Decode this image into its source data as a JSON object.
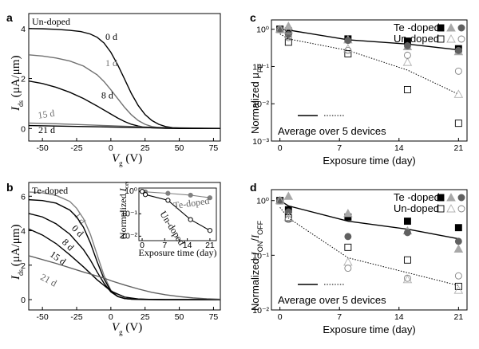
{
  "chart_data": [
    {
      "panel": "a",
      "type": "line",
      "title": "Un-doped",
      "xlabel_main": "V",
      "xlabel_sub": "g",
      "xlabel_unit": " (V)",
      "ylabel_main": "I",
      "ylabel_sub": "ds",
      "ylabel_unit": " (μA/μm)",
      "xlim": [
        -60,
        80
      ],
      "ylim": [
        -0.5,
        4.6
      ],
      "xticks": [
        -50,
        -25,
        0,
        25,
        50,
        75
      ],
      "yticks": [
        0,
        2,
        4
      ],
      "series": [
        {
          "name": "0 d",
          "color": "#000000",
          "label_x": -4,
          "label_y": 3.55,
          "x": [
            -60,
            -50,
            -40,
            -30,
            -22,
            -15,
            -10,
            -5,
            0,
            5,
            10,
            15,
            20,
            25,
            30,
            35,
            40,
            45,
            50,
            60,
            70,
            80
          ],
          "y": [
            4.0,
            3.99,
            3.97,
            3.93,
            3.88,
            3.78,
            3.65,
            3.42,
            3.05,
            2.55,
            1.98,
            1.4,
            0.92,
            0.56,
            0.32,
            0.17,
            0.08,
            0.04,
            0.02,
            0.01,
            0.0,
            0.0
          ]
        },
        {
          "name": "1 d",
          "color": "#707070",
          "label_x": -4,
          "label_y": 2.5,
          "x": [
            -60,
            -50,
            -40,
            -30,
            -20,
            -10,
            -5,
            0,
            5,
            10,
            15,
            20,
            25,
            30,
            35,
            40,
            50,
            60,
            80
          ],
          "y": [
            2.95,
            2.9,
            2.82,
            2.7,
            2.5,
            2.15,
            1.88,
            1.55,
            1.2,
            0.85,
            0.55,
            0.32,
            0.17,
            0.08,
            0.04,
            0.02,
            0.01,
            0.0,
            0.0
          ]
        },
        {
          "name": "8 d",
          "color": "#000000",
          "label_x": -7,
          "label_y": 1.2,
          "x": [
            -60,
            -50,
            -40,
            -30,
            -20,
            -10,
            0,
            5,
            10,
            15,
            20,
            25,
            30,
            35,
            40,
            50,
            60,
            80
          ],
          "y": [
            1.9,
            1.8,
            1.65,
            1.45,
            1.2,
            0.9,
            0.58,
            0.42,
            0.28,
            0.17,
            0.1,
            0.05,
            0.03,
            0.02,
            0.01,
            0.0,
            0.0,
            0.0
          ]
        },
        {
          "name": "15 d",
          "color": "#707070",
          "label_x": -53,
          "label_y": 0.4,
          "x": [
            -60,
            -40,
            -20,
            0,
            20,
            40,
            60,
            80
          ],
          "y": [
            0.22,
            0.19,
            0.15,
            0.11,
            0.07,
            0.04,
            0.02,
            0.01
          ]
        },
        {
          "name": "21 d",
          "color": "#000000",
          "label_x": -53,
          "label_y": -0.18,
          "x": [
            -60,
            -40,
            -20,
            0,
            20,
            40,
            60,
            80
          ],
          "y": [
            0.12,
            0.1,
            0.08,
            0.06,
            0.04,
            0.02,
            0.01,
            0.0
          ]
        }
      ]
    },
    {
      "panel": "b",
      "type": "line",
      "title": "Te-doped",
      "xlabel_main": "V",
      "xlabel_sub": "g",
      "xlabel_unit": " (V)",
      "ylabel_main": "I",
      "ylabel_sub": "ds",
      "ylabel_unit": " (μA/μm)",
      "xlim": [
        -60,
        80
      ],
      "ylim": [
        -0.6,
        6.8
      ],
      "xticks": [
        -50,
        -25,
        0,
        25,
        50,
        75
      ],
      "yticks": [
        0,
        2,
        4,
        6
      ],
      "series": [
        {
          "name": "1 d",
          "color": "#808080",
          "label_x": -27,
          "label_y": 4.9,
          "x": [
            -60,
            -50,
            -40,
            -30,
            -25,
            -20,
            -15,
            -10,
            -5,
            0,
            5,
            10,
            15,
            20,
            30,
            40,
            60,
            80
          ],
          "y": [
            6.25,
            6.2,
            6.05,
            5.7,
            5.3,
            4.7,
            3.8,
            2.6,
            1.4,
            0.55,
            0.2,
            0.07,
            0.03,
            0.02,
            0.01,
            0.0,
            0.0,
            0.0
          ]
        },
        {
          "name": "0 d",
          "color": "#000000",
          "label_x": -29,
          "label_y": 4.1,
          "x": [
            -60,
            -50,
            -40,
            -30,
            -25,
            -20,
            -15,
            -10,
            -5,
            0,
            5,
            10,
            15,
            20,
            30,
            40,
            60,
            80
          ],
          "y": [
            5.8,
            5.75,
            5.6,
            5.2,
            4.8,
            4.2,
            3.3,
            2.2,
            1.2,
            0.5,
            0.18,
            0.06,
            0.03,
            0.02,
            0.01,
            0.0,
            0.0,
            0.0
          ]
        },
        {
          "name": "8 d",
          "color": "#000000",
          "label_x": -36,
          "label_y": 3.3,
          "x": [
            -60,
            -50,
            -40,
            -30,
            -20,
            -15,
            -10,
            -5,
            0,
            5,
            10,
            15,
            20,
            30,
            40,
            60,
            80
          ],
          "y": [
            5.0,
            4.8,
            4.4,
            3.8,
            2.9,
            2.3,
            1.6,
            0.95,
            0.45,
            0.18,
            0.07,
            0.03,
            0.01,
            0.0,
            0.0,
            0.0,
            0.0
          ]
        },
        {
          "name": "15 d",
          "color": "#000000",
          "label_x": -45,
          "label_y": 2.55,
          "x": [
            -60,
            -50,
            -40,
            -30,
            -20,
            -10,
            0,
            10,
            20,
            30,
            40,
            60,
            80
          ],
          "y": [
            4.1,
            3.75,
            3.25,
            2.6,
            1.9,
            1.15,
            0.5,
            0.15,
            0.04,
            0.01,
            0.0,
            0.0,
            0.0
          ]
        },
        {
          "name": "21 d",
          "color": "#606060",
          "label_x": -52,
          "label_y": 1.2,
          "x": [
            -60,
            -40,
            -20,
            -5,
            0,
            10,
            20,
            30,
            40,
            50,
            60,
            70,
            80
          ],
          "y": [
            2.55,
            2.1,
            1.6,
            1.25,
            1.1,
            0.85,
            0.62,
            0.42,
            0.28,
            0.18,
            0.1,
            0.05,
            0.02
          ]
        }
      ],
      "inset": {
        "xlabel": "Exposure time (day)",
        "ylabel_main": "Normalized ",
        "ylabel_sym": "I",
        "ylabel_sub": "ON",
        "xticks": [
          0,
          7,
          14,
          21
        ],
        "yticks": [
          "10⁰",
          "10⁻¹",
          "10⁻²"
        ],
        "xlim": [
          -1,
          23
        ],
        "ylim_log": [
          -2.2,
          0.15
        ],
        "series": [
          {
            "name": "Te-doped",
            "color": "#808080",
            "marker": "filled",
            "x": [
              0,
              1,
              8,
              15,
              21
            ],
            "y": [
              1.0,
              0.95,
              0.82,
              0.68,
              0.52
            ]
          },
          {
            "name": "Un-doped",
            "color": "#000000",
            "marker": "open",
            "x": [
              0,
              1,
              8,
              15,
              21
            ],
            "y": [
              1.0,
              0.72,
              0.4,
              0.055,
              0.018
            ]
          }
        ]
      }
    },
    {
      "panel": "c",
      "type": "scatter",
      "ylabel": "Normalized μ",
      "ylabel_sub": "FE",
      "xlabel": "Exposure time (day)",
      "xticks": [
        0,
        7,
        14,
        21
      ],
      "xlim": [
        -1,
        22
      ],
      "ylim_log": [
        -3,
        0.25
      ],
      "yticks": [
        "10⁰",
        "10⁻¹",
        "10⁻²",
        "10⁻³"
      ],
      "legend_te": "Te -doped",
      "legend_un": "Un-doped",
      "avg_label": "Average over 5 devices",
      "te_devices": [
        {
          "marker": "square-filled",
          "x": [
            0,
            1,
            8,
            15,
            21
          ],
          "y": [
            1.0,
            0.9,
            0.55,
            0.48,
            0.3
          ]
        },
        {
          "marker": "triangle-filled",
          "x": [
            0,
            1,
            8,
            15,
            21
          ],
          "y": [
            1.0,
            1.2,
            0.52,
            0.34,
            0.25
          ]
        },
        {
          "marker": "circle-filled",
          "x": [
            0,
            1,
            8,
            15,
            21
          ],
          "y": [
            1.0,
            0.72,
            0.5,
            0.36,
            0.27
          ]
        }
      ],
      "un_devices": [
        {
          "marker": "square-open",
          "x": [
            0,
            1,
            8,
            15,
            21
          ],
          "y": [
            1.0,
            0.45,
            0.22,
            0.024,
            0.003
          ]
        },
        {
          "marker": "triangle-open",
          "x": [
            0,
            1,
            8,
            15,
            21
          ],
          "y": [
            1.0,
            0.95,
            0.3,
            0.13,
            0.018
          ]
        },
        {
          "marker": "circle-open",
          "x": [
            0,
            1,
            8,
            15,
            21
          ],
          "y": [
            1.0,
            0.6,
            0.27,
            0.2,
            0.075
          ]
        }
      ],
      "te_avg": {
        "x": [
          0,
          1,
          8,
          15,
          21
        ],
        "y": [
          1.0,
          0.95,
          0.52,
          0.4,
          0.28
        ]
      },
      "un_avg": {
        "x": [
          0,
          1,
          8,
          15,
          21
        ],
        "y": [
          0.75,
          0.55,
          0.27,
          0.08,
          0.018
        ]
      }
    },
    {
      "panel": "d",
      "type": "scatter",
      "ylabel": "Normalized ",
      "ylabel_sym1": "I",
      "ylabel_sub1": "ON",
      "ylabel_mid": "/",
      "ylabel_sym2": "I",
      "ylabel_sub2": "OFF",
      "xlabel": "Exposure time (day)",
      "xticks": [
        0,
        7,
        14,
        21
      ],
      "xlim": [
        -1,
        22
      ],
      "ylim_log": [
        -2,
        0.2
      ],
      "yticks": [
        "10⁰",
        "10⁻¹",
        "10⁻²"
      ],
      "legend_te": "Te -doped",
      "legend_un": "Un-doped",
      "avg_label": "Average over 5 devices",
      "te_devices": [
        {
          "marker": "square-filled",
          "x": [
            0,
            1,
            8,
            15,
            21
          ],
          "y": [
            1.0,
            0.68,
            0.5,
            0.42,
            0.32
          ]
        },
        {
          "marker": "triangle-filled",
          "x": [
            0,
            1,
            8,
            15,
            21
          ],
          "y": [
            1.0,
            1.2,
            0.58,
            0.28,
            0.13
          ]
        },
        {
          "marker": "circle-filled",
          "x": [
            0,
            1,
            8,
            15,
            21
          ],
          "y": [
            1.0,
            0.62,
            0.22,
            0.26,
            0.18
          ]
        }
      ],
      "un_devices": [
        {
          "marker": "square-open",
          "x": [
            0,
            1,
            8,
            15,
            21
          ],
          "y": [
            1.0,
            0.48,
            0.14,
            0.082,
            0.027
          ]
        },
        {
          "marker": "triangle-open",
          "x": [
            0,
            1,
            8,
            15,
            21
          ],
          "y": [
            1.0,
            0.5,
            0.075,
            0.036,
            0.023
          ]
        },
        {
          "marker": "circle-open",
          "x": [
            0,
            1,
            8,
            15,
            21
          ],
          "y": [
            1.0,
            0.45,
            0.058,
            0.038,
            0.042
          ]
        }
      ],
      "te_avg": {
        "x": [
          0,
          1,
          8,
          15,
          21
        ],
        "y": [
          1.0,
          0.8,
          0.42,
          0.3,
          0.2
        ]
      },
      "un_avg": {
        "x": [
          0,
          1,
          8,
          15,
          21
        ],
        "y": [
          0.75,
          0.48,
          0.09,
          0.048,
          0.028
        ]
      }
    }
  ],
  "panel_labels": {
    "a": "a",
    "b": "b",
    "c": "c",
    "d": "d"
  }
}
